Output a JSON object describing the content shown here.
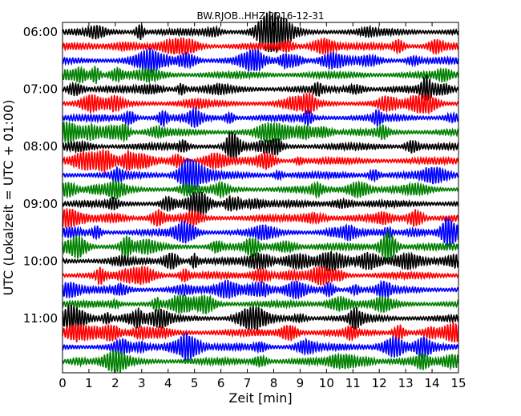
{
  "chart_data": {
    "type": "line",
    "title": "BW.RJOB..HHZ 2016-12-31",
    "xlabel": "Zeit  [min]",
    "ylabel": "UTC (Lokalzeit = UTC + 01:00)",
    "xlim": [
      0,
      15
    ],
    "x_ticks": [
      "0",
      "1",
      "2",
      "3",
      "4",
      "5",
      "6",
      "7",
      "8",
      "9",
      "10",
      "11",
      "12",
      "13",
      "14",
      "15"
    ],
    "y_ticks": [
      "06:00",
      "07:00",
      "08:00",
      "09:00",
      "10:00",
      "11:00"
    ],
    "trace_interval_min": 15,
    "trace_start": "06:00",
    "trace_count": 24,
    "colors": [
      "#000000",
      "#ff0000",
      "#0000ff",
      "#008000"
    ],
    "grid": false,
    "legend": "none"
  }
}
